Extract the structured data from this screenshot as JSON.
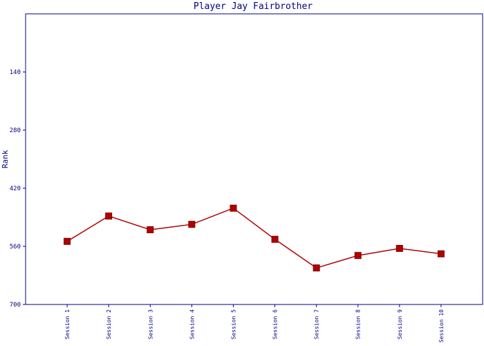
{
  "chart_data": {
    "type": "line",
    "title": "Player Jay Fairbrother",
    "y_label": "Rank",
    "categories": [
      "Session 1",
      "Session 2",
      "Session 3",
      "Session 4",
      "Session 5",
      "Session 6",
      "Session 7",
      "Session 8",
      "Session 9",
      "Session 10"
    ],
    "series": [
      {
        "name": "Rank",
        "color": "#b00000",
        "values": [
          548,
          487,
          520,
          507,
          468,
          543,
          612,
          582,
          565,
          578
        ]
      }
    ],
    "ylim": [
      0,
      700
    ],
    "yticks": [
      140,
      280,
      420,
      560,
      700
    ],
    "y_inverted": true
  }
}
